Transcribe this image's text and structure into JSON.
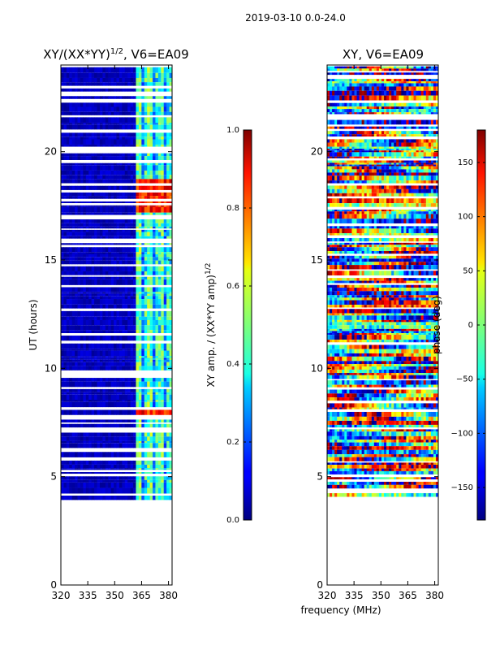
{
  "header": {
    "date_range": "2019-03-10 0.0-24.0"
  },
  "chart_data": [
    {
      "type": "heatmap",
      "title": "XY/(XX*YY)^1/2, V6=EA09",
      "title_main": "XY/(XX*YY)",
      "title_sup": "1/2",
      "title_suffix": ", V6=EA09",
      "xlabel": "",
      "ylabel": "UT (hours)",
      "xlim": [
        320,
        382
      ],
      "ylim": [
        0,
        24
      ],
      "x_ticks": [
        320,
        335,
        350,
        365,
        380
      ],
      "y_ticks": [
        0,
        5,
        10,
        15,
        20
      ],
      "data_start_hour": 4.1,
      "data_end_hour": 24,
      "colorbar": {
        "label": "XY amp. / (XX*YY amp)^1/2",
        "label_main": "XY amp. / (XX*YY amp)",
        "label_sup": "1/2",
        "range": [
          0.0,
          1.0
        ],
        "ticks": [
          "0.0",
          "0.2",
          "0.4",
          "0.6",
          "0.8",
          "1.0"
        ]
      }
    },
    {
      "type": "heatmap",
      "title": "XY, V6=EA09",
      "xlabel": "frequency (MHz)",
      "ylabel": "",
      "xlim": [
        320,
        382
      ],
      "ylim": [
        0,
        24
      ],
      "x_ticks": [
        320,
        335,
        350,
        365,
        380
      ],
      "y_ticks": [
        0,
        5,
        10,
        15,
        20
      ],
      "data_start_hour": 4.1,
      "data_end_hour": 24,
      "colorbar": {
        "label": "phase (deg)",
        "range": [
          -180,
          180
        ],
        "ticks": [
          "−150",
          "−100",
          "−50",
          "0",
          "50",
          "100",
          "150"
        ]
      }
    }
  ]
}
